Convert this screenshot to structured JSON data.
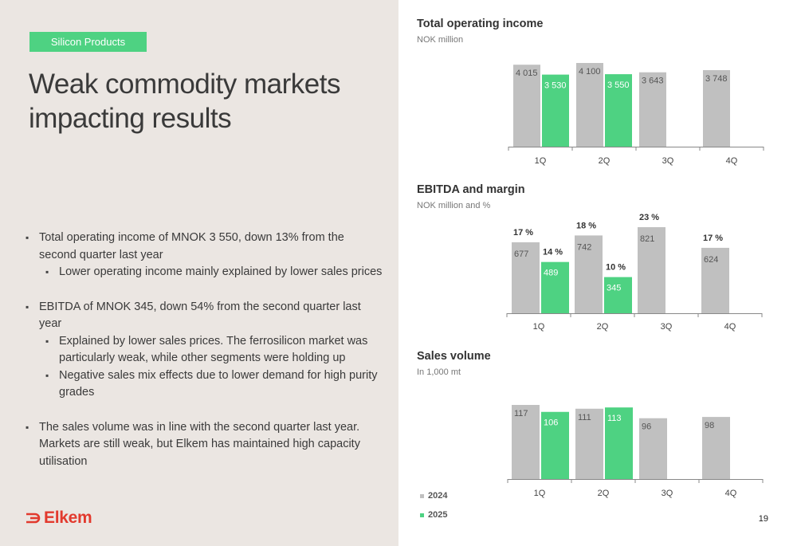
{
  "tag": "Silicon Products",
  "headline": "Weak commodity markets impacting results",
  "bullets": {
    "b1": "Total operating income of MNOK 3 550, down 13% from the second quarter last year",
    "b1_1": "Lower operating income mainly explained by lower sales prices",
    "b2": "EBITDA of MNOK 345, down 54% from the second quarter last year",
    "b2_1": "Explained by lower sales prices. The ferrosilicon market was particularly weak, while other segments were holding up",
    "b2_2": "Negative sales mix effects due to lower demand for high purity grades",
    "b3": "The sales volume was in line with the second quarter last year. Markets are still weak, but Elkem has maintained high capacity utilisation"
  },
  "logo": "Elkem",
  "page_number": "19",
  "colors": {
    "prior": "#c0c0c0",
    "current": "#4ed282",
    "brand": "#e23a2e",
    "tag": "#4ed282"
  },
  "legend": [
    "2024",
    "2025"
  ],
  "chart_data": [
    {
      "type": "bar",
      "title": "Total operating income",
      "subtitle": "NOK million",
      "categories": [
        "1Q",
        "2Q",
        "3Q",
        "4Q"
      ],
      "ylim": [
        0,
        4100
      ],
      "series": [
        {
          "name": "2024",
          "values": [
            4015,
            4100,
            3643,
            3748
          ],
          "labels": [
            "4 015",
            "4 100",
            "3 643",
            "3 748"
          ]
        },
        {
          "name": "2025",
          "values": [
            3530,
            3550,
            null,
            null
          ],
          "labels": [
            "3 530",
            "3 550",
            "",
            ""
          ]
        }
      ]
    },
    {
      "type": "bar",
      "title": "EBITDA and margin",
      "subtitle": "NOK million and %",
      "categories": [
        "1Q",
        "2Q",
        "3Q",
        "4Q"
      ],
      "ylim": [
        0,
        821
      ],
      "series": [
        {
          "name": "2024",
          "values": [
            677,
            742,
            821,
            624
          ],
          "labels": [
            "677",
            "742",
            "821",
            "624"
          ],
          "margins": [
            "17 %",
            "18 %",
            "23 %",
            "17 %"
          ]
        },
        {
          "name": "2025",
          "values": [
            489,
            345,
            null,
            null
          ],
          "labels": [
            "489",
            "345",
            "",
            ""
          ],
          "margins": [
            "14 %",
            "10 %",
            "",
            ""
          ]
        }
      ]
    },
    {
      "type": "bar",
      "title": "Sales volume",
      "subtitle": "In 1,000 mt",
      "categories": [
        "1Q",
        "2Q",
        "3Q",
        "4Q"
      ],
      "ylim": [
        0,
        117
      ],
      "series": [
        {
          "name": "2024",
          "values": [
            117,
            111,
            96,
            98
          ],
          "labels": [
            "117",
            "111",
            "96",
            "98"
          ]
        },
        {
          "name": "2025",
          "values": [
            106,
            113,
            null,
            null
          ],
          "labels": [
            "106",
            "113",
            "",
            ""
          ]
        }
      ]
    }
  ]
}
